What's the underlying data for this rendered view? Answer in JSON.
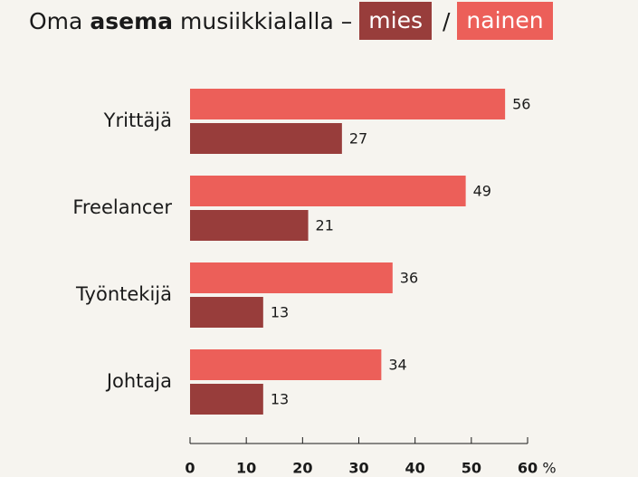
{
  "chart_data": {
    "type": "barh",
    "title_parts": [
      "Oma",
      "asema",
      "musiikkialalla –"
    ],
    "legend_separator": "/",
    "categories": [
      "Yrittäjä",
      "Freelancer",
      "Työntekijä",
      "Johtaja"
    ],
    "series": [
      {
        "name": "mies",
        "color": "#983d3b",
        "values": [
          27,
          21,
          13,
          13
        ]
      },
      {
        "name": "nainen",
        "color": "#ec5f59",
        "values": [
          56,
          49,
          36,
          34
        ]
      }
    ],
    "xlim": [
      0,
      60
    ],
    "xticks": [
      0,
      10,
      20,
      30,
      40,
      50,
      60
    ],
    "x_unit": "%"
  }
}
